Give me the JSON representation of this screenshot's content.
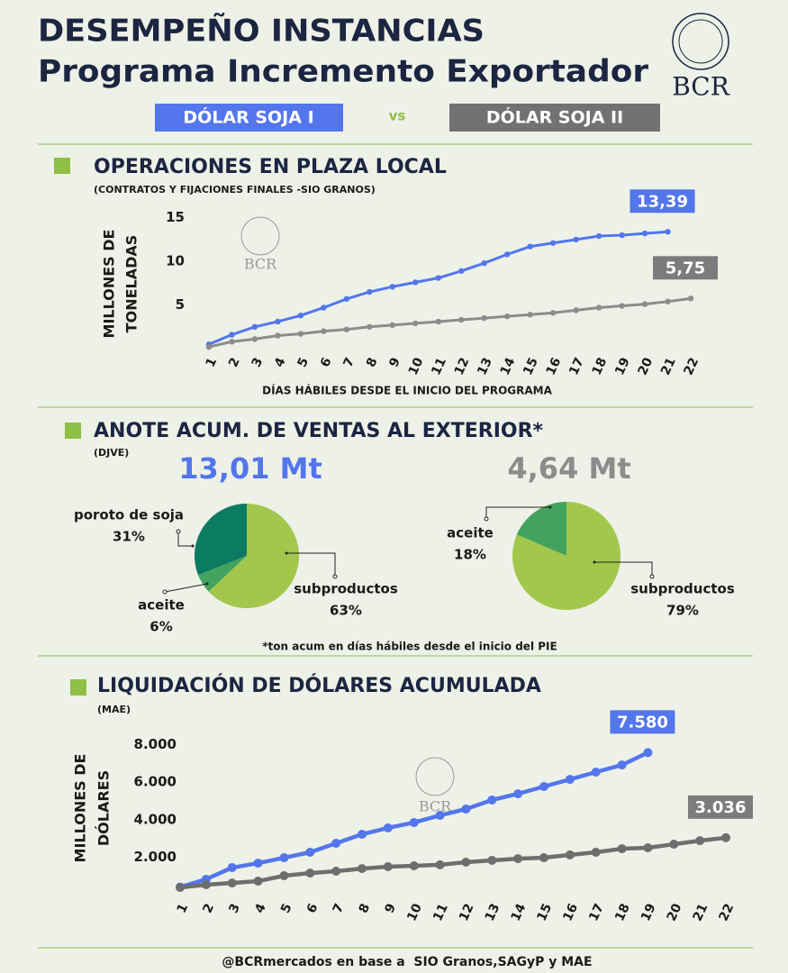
{
  "header": {
    "title": "DESEMPEÑO INSTANCIAS",
    "subtitle": "Programa Incremento Exportador",
    "vs": "vs",
    "logo": "BCR"
  },
  "footer": "@BCRmercados en base a  SIO Granos,SAGyP y MAE",
  "chart_data": [
    {
      "type": "line",
      "title": "OPERACIONES EN PLAZA LOCAL",
      "subtitle": "(CONTRATOS Y FIJACIONES FINALES -SIO GRANOS)",
      "ylabel": [
        "MILLONES DE",
        "TONELADAS"
      ],
      "xlabel": "DÍAS HÁBILES DESDE EL INICIO DEL PROGRAMA",
      "x": [
        1,
        2,
        3,
        4,
        5,
        6,
        7,
        8,
        9,
        10,
        11,
        12,
        13,
        14,
        15,
        16,
        17,
        18,
        19,
        20,
        21,
        22
      ],
      "xlim": [
        1,
        22
      ],
      "xticks": [
        1,
        2,
        3,
        4,
        5,
        6,
        7,
        8,
        9,
        10,
        11,
        12,
        13,
        14,
        15,
        16,
        17,
        18,
        19,
        20,
        21,
        22
      ],
      "ylim": [
        0,
        16
      ],
      "yticks": [
        5,
        10,
        15
      ],
      "series": [
        {
          "name": "DÓLAR SOJA I",
          "color": "#5376ec",
          "values": [
            0.5,
            1.6,
            2.5,
            3.1,
            3.8,
            4.7,
            5.7,
            6.5,
            7.1,
            7.6,
            8.1,
            8.9,
            9.8,
            10.8,
            11.7,
            12.1,
            12.5,
            12.9,
            13.0,
            13.2,
            13.39,
            null
          ],
          "value_labels": [
            null,
            null,
            null,
            null,
            null,
            null,
            null,
            null,
            null,
            null,
            null,
            null,
            null,
            null,
            null,
            null,
            null,
            null,
            null,
            null,
            "13,39",
            null
          ]
        },
        {
          "name": "DÓLAR SOJA II",
          "color": "#8c8c8c",
          "values": [
            0.2,
            0.8,
            1.1,
            1.5,
            1.7,
            2.0,
            2.2,
            2.5,
            2.7,
            2.9,
            3.1,
            3.3,
            3.5,
            3.7,
            3.9,
            4.1,
            4.4,
            4.7,
            4.9,
            5.1,
            5.4,
            5.75
          ],
          "value_labels": [
            null,
            null,
            null,
            null,
            null,
            null,
            null,
            null,
            null,
            null,
            null,
            null,
            null,
            null,
            null,
            null,
            null,
            null,
            null,
            null,
            null,
            "5,75"
          ]
        }
      ]
    },
    {
      "type": "pie",
      "title": "ANOTE ACUM. DE VENTAS AL EXTERIOR*",
      "subtitle": "(DJVE)",
      "note": "*ton acum en días hábiles desde el inicio del PIE",
      "total": "13,01 Mt",
      "total_color": "#5376ec",
      "categories": [
        "poroto de soja",
        "aceite",
        "subproductos"
      ],
      "values": [
        31,
        6,
        63
      ],
      "value_labels": [
        "31%",
        "6%",
        "63%"
      ],
      "colors": [
        "#0b7b61",
        "#43a35e",
        "#a3c64c"
      ]
    },
    {
      "type": "pie",
      "total": "4,64 Mt",
      "total_color": "#8c8c8c",
      "categories": [
        "aceite",
        "subproductos"
      ],
      "values": [
        18,
        79
      ],
      "value_labels": [
        "18%",
        "79%"
      ],
      "colors": [
        "#43a35e",
        "#a3c64c"
      ]
    },
    {
      "type": "line",
      "title": "LIQUIDACIÓN DE DÓLARES ACUMULADA",
      "subtitle": "(MAE)",
      "ylabel": [
        "MILLONES DE",
        "DÓLARES"
      ],
      "x": [
        1,
        2,
        3,
        4,
        5,
        6,
        7,
        8,
        9,
        10,
        11,
        12,
        13,
        14,
        15,
        16,
        17,
        18,
        19,
        20,
        21,
        22
      ],
      "xlim": [
        1,
        22
      ],
      "xticks": [
        1,
        2,
        3,
        4,
        5,
        6,
        7,
        8,
        9,
        10,
        11,
        12,
        13,
        14,
        15,
        16,
        17,
        18,
        19,
        20,
        21,
        22
      ],
      "ylim": [
        0,
        8800
      ],
      "yticks": [
        {
          "value": 2000,
          "label": "2.000"
        },
        {
          "value": 4000,
          "label": "4.000"
        },
        {
          "value": 6000,
          "label": "6.000"
        },
        {
          "value": 8000,
          "label": "8.000"
        }
      ],
      "series": [
        {
          "color": "#5376ec",
          "values": [
            400,
            820,
            1440,
            1680,
            1970,
            2260,
            2740,
            3220,
            3560,
            3850,
            4230,
            4570,
            5050,
            5380,
            5770,
            6150,
            6540,
            6920,
            7580,
            null,
            null,
            null
          ],
          "value_labels": [
            null,
            null,
            null,
            null,
            null,
            null,
            null,
            null,
            null,
            null,
            null,
            null,
            null,
            null,
            null,
            null,
            null,
            null,
            "7.580",
            null,
            null,
            null
          ]
        },
        {
          "color": "#6e6e6e",
          "values": [
            380,
            530,
            620,
            720,
            1010,
            1150,
            1250,
            1390,
            1490,
            1540,
            1590,
            1730,
            1830,
            1920,
            1970,
            2120,
            2260,
            2450,
            2500,
            2690,
            2880,
            3036
          ],
          "value_labels": [
            null,
            null,
            null,
            null,
            null,
            null,
            null,
            null,
            null,
            null,
            null,
            null,
            null,
            null,
            null,
            null,
            null,
            null,
            null,
            null,
            null,
            "3.036"
          ]
        }
      ]
    }
  ]
}
